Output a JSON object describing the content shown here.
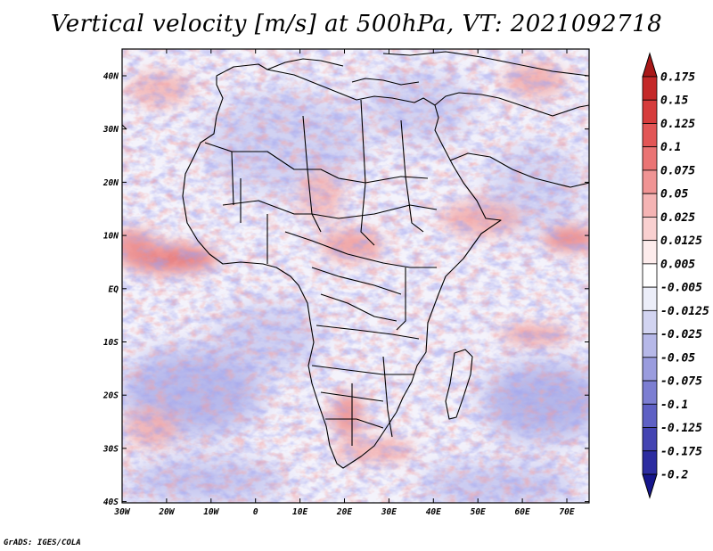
{
  "title": "Vertical velocity [m/s] at 500hPa, VT: 2021092718",
  "credit": "GrADS: IGES/COLA",
  "map": {
    "lat_labels": [
      "40N",
      "30N",
      "20N",
      "10N",
      "EQ",
      "10S",
      "20S",
      "30S",
      "40S"
    ],
    "lon_labels": [
      "30W",
      "20W",
      "10W",
      "0",
      "10E",
      "20E",
      "30E",
      "40E",
      "50E",
      "60E",
      "70E"
    ],
    "region": "Africa and surrounding oceans"
  },
  "colorbar": {
    "labels": [
      "0.175",
      "0.15",
      "0.125",
      "0.1",
      "0.075",
      "0.05",
      "0.025",
      "0.0125",
      "0.005",
      "-0.005",
      "-0.0125",
      "-0.025",
      "-0.05",
      "-0.075",
      "-0.1",
      "-0.125",
      "-0.175",
      "-0.2"
    ],
    "colors": [
      "#a81818",
      "#c42828",
      "#d63c3c",
      "#e25656",
      "#ea7474",
      "#f09494",
      "#f5b4b4",
      "#f9d0d0",
      "#fdecec",
      "#ffffff",
      "#eceef9",
      "#d2d4f1",
      "#b6b8e8",
      "#9a9cde",
      "#7c7ed2",
      "#5e60c4",
      "#4444b2",
      "#2c2ca0",
      "#16168c"
    ]
  }
}
